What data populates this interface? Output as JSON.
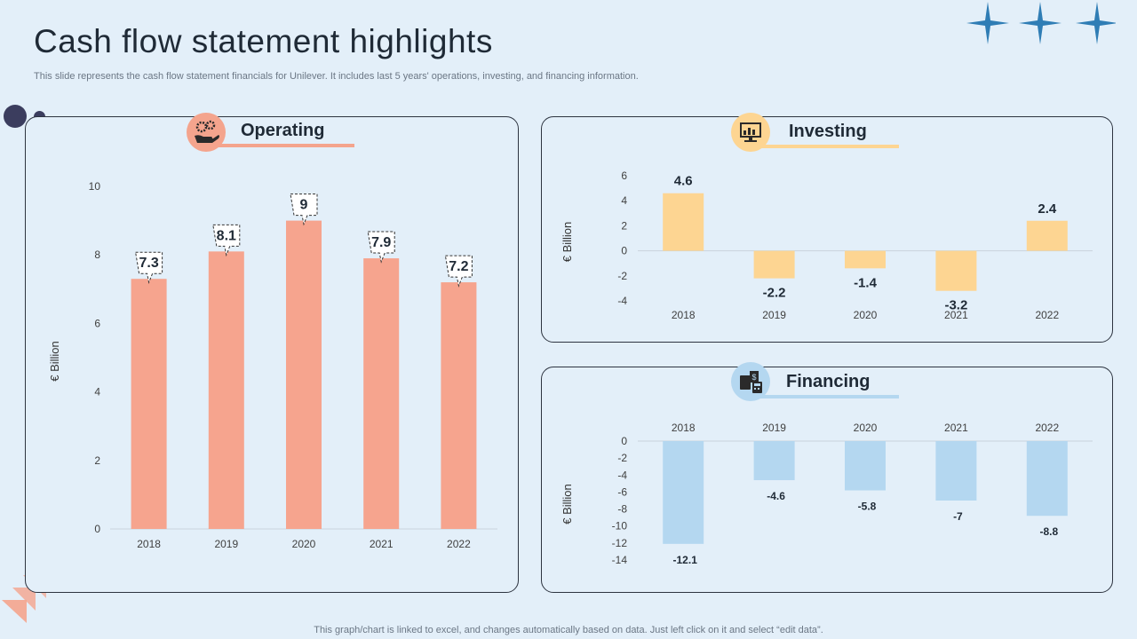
{
  "page": {
    "title": "Cash flow statement highlights",
    "subtitle": "This slide represents the cash flow statement financials for Unilever. It includes last 5 years' operations, investing, and financing information.",
    "footer": "This graph/chart is linked to excel,  and changes automatically based on data. Just left click on it and select “edit data”."
  },
  "panels": {
    "operating": {
      "label": "Operating",
      "accent": "#f4a48d",
      "icon": "hand-gears-icon"
    },
    "investing": {
      "label": "Investing",
      "accent": "#fdd592",
      "icon": "monitor-chart-icon"
    },
    "financing": {
      "label": "Financing",
      "accent": "#b4d7f0",
      "icon": "calculator-money-icon"
    }
  },
  "chart_data": [
    {
      "id": "operating",
      "type": "bar",
      "categories": [
        "2018",
        "2019",
        "2020",
        "2021",
        "2022"
      ],
      "values": [
        7.3,
        8.1,
        9,
        7.9,
        7.2
      ],
      "ylabel": "€ Billion",
      "ylim": [
        0,
        10
      ],
      "yticks": [
        0,
        2,
        4,
        6,
        8,
        10
      ],
      "color": "#f6a48e",
      "labels": [
        "7.3",
        "8.1",
        "9",
        "7.9",
        "7.2"
      ]
    },
    {
      "id": "investing",
      "type": "bar",
      "categories": [
        "2018",
        "2019",
        "2020",
        "2021",
        "2022"
      ],
      "values": [
        4.6,
        -2.2,
        -1.4,
        -3.2,
        2.4
      ],
      "ylabel": "€ Billion",
      "ylim": [
        -4,
        6
      ],
      "yticks": [
        -4,
        -2,
        0,
        2,
        4,
        6
      ],
      "color": "#fdd592",
      "labels": [
        "4.6",
        "-2.2",
        "-1.4",
        "-3.2",
        "2.4"
      ]
    },
    {
      "id": "financing",
      "type": "bar",
      "categories": [
        "2018",
        "2019",
        "2020",
        "2021",
        "2022"
      ],
      "values": [
        -12.1,
        -4.6,
        -5.8,
        -7,
        -8.8
      ],
      "ylabel": "€ Billion",
      "ylim": [
        -14,
        0
      ],
      "yticks": [
        -14,
        -12,
        -10,
        -8,
        -6,
        -4,
        -2,
        0
      ],
      "color": "#b4d7f0",
      "labels": [
        "-12.1",
        "-4.6",
        "-5.8",
        "-7",
        "-8.8"
      ]
    }
  ]
}
